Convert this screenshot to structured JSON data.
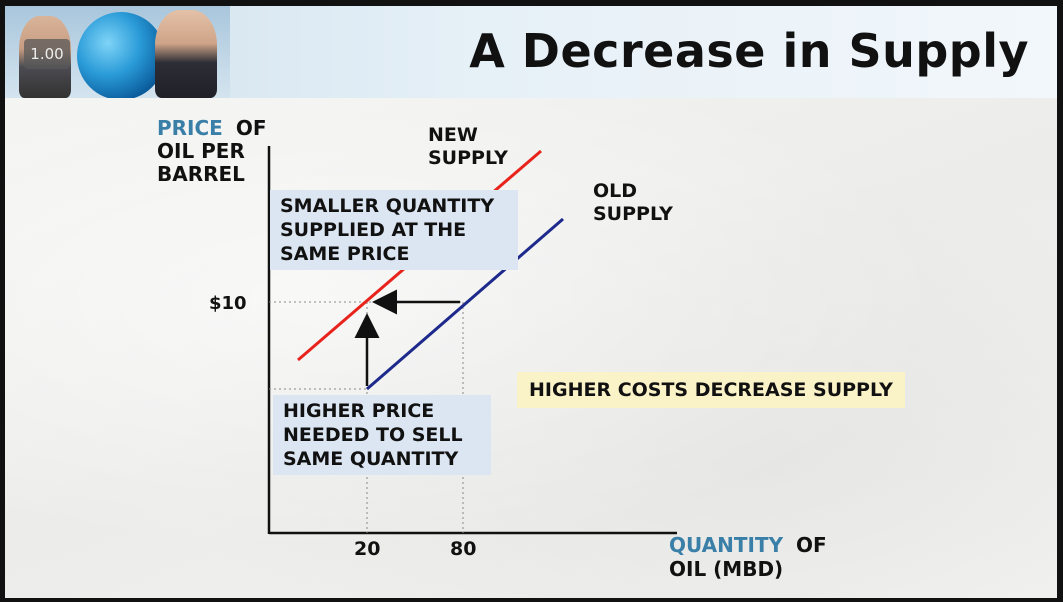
{
  "header": {
    "title": "A Decrease in Supply",
    "playback_speed": "1.00"
  },
  "chart_data": {
    "type": "line",
    "y_axis_label": {
      "highlight": "PRICE",
      "rest_line1": "OF",
      "line2": "OIL PER",
      "line3": "BARREL"
    },
    "x_axis_label": {
      "highlight": "QUANTITY",
      "rest_line1": "OF",
      "line2": "OIL (MBD)"
    },
    "x_ticks": [
      {
        "value": 20,
        "label": "20"
      },
      {
        "value": 80,
        "label": "80"
      }
    ],
    "y_ticks": [
      {
        "value": 10,
        "label": "$10"
      }
    ],
    "series": [
      {
        "name": "NEW SUPPLY",
        "label_line1": "NEW",
        "label_line2": "SUPPLY",
        "color": "#e8231c",
        "note": "shifted left; at $10 quantity supplied is 20"
      },
      {
        "name": "OLD SUPPLY",
        "label_line1": "OLD",
        "label_line2": "SUPPLY",
        "color": "#1d2a8c",
        "note": "at $10 quantity supplied is 80"
      }
    ],
    "annotations": {
      "smaller_quantity": [
        "SMALLER QUANTITY",
        "SUPPLIED AT THE",
        "SAME PRICE"
      ],
      "higher_price": [
        "HIGHER PRICE",
        "NEEDED TO SELL",
        "SAME QUANTITY"
      ],
      "higher_costs": "HIGHER COSTS DECREASE SUPPLY"
    },
    "colors": {
      "axis_highlight": "#3a7fa8",
      "annotation_box": "#dce6f2",
      "note_box": "#fbf3c8"
    }
  }
}
